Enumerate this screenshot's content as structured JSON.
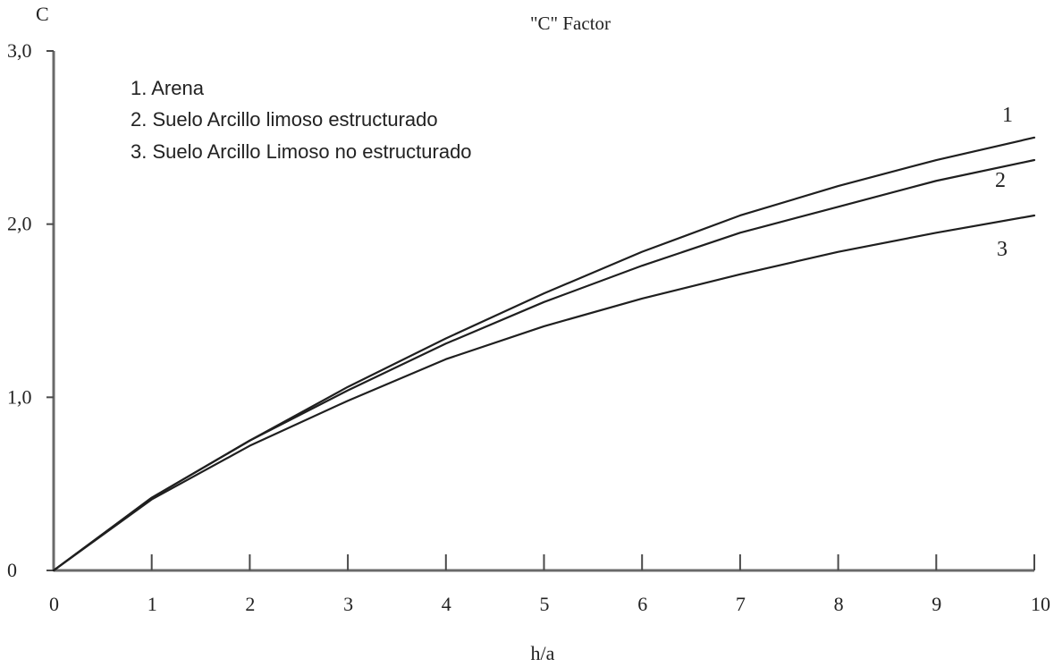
{
  "chart_data": {
    "type": "line",
    "title": "\"C\" Factor",
    "xlabel": "h/a",
    "ylabel": "C",
    "xlim": [
      0,
      10
    ],
    "ylim": [
      0,
      3.0
    ],
    "x_ticks": [
      {
        "value": 0,
        "label": "0"
      },
      {
        "value": 1,
        "label": "1"
      },
      {
        "value": 2,
        "label": "2"
      },
      {
        "value": 3,
        "label": "3"
      },
      {
        "value": 4,
        "label": "4"
      },
      {
        "value": 5,
        "label": "5"
      },
      {
        "value": 6,
        "label": "6"
      },
      {
        "value": 7,
        "label": "7"
      },
      {
        "value": 8,
        "label": "8"
      },
      {
        "value": 9,
        "label": "9"
      },
      {
        "value": 10,
        "label": "10"
      }
    ],
    "y_ticks": [
      {
        "value": 0,
        "label": "0"
      },
      {
        "value": 1.0,
        "label": "1,0"
      },
      {
        "value": 2.0,
        "label": "2,0"
      },
      {
        "value": 3.0,
        "label": "3,0"
      }
    ],
    "legend": {
      "position": "top-left",
      "items": [
        "1.  Arena",
        "2.  Suelo Arcillo limoso estructurado",
        "3.  Suelo Arcillo Limoso no estructurado"
      ]
    },
    "series": [
      {
        "name": "1",
        "x": [
          0,
          1,
          2,
          3,
          4,
          5,
          6,
          7,
          8,
          9,
          10
        ],
        "y": [
          0,
          0.42,
          0.75,
          1.06,
          1.34,
          1.6,
          1.84,
          2.05,
          2.22,
          2.37,
          2.5
        ]
      },
      {
        "name": "2",
        "x": [
          0,
          1,
          2,
          3,
          4,
          5,
          6,
          7,
          8,
          9,
          10
        ],
        "y": [
          0,
          0.42,
          0.75,
          1.04,
          1.31,
          1.55,
          1.76,
          1.95,
          2.1,
          2.25,
          2.37
        ]
      },
      {
        "name": "3",
        "x": [
          0,
          1,
          2,
          3,
          4,
          5,
          6,
          7,
          8,
          9,
          10
        ],
        "y": [
          0,
          0.41,
          0.72,
          0.98,
          1.22,
          1.41,
          1.57,
          1.71,
          1.84,
          1.95,
          2.05
        ]
      }
    ],
    "grid": false
  }
}
